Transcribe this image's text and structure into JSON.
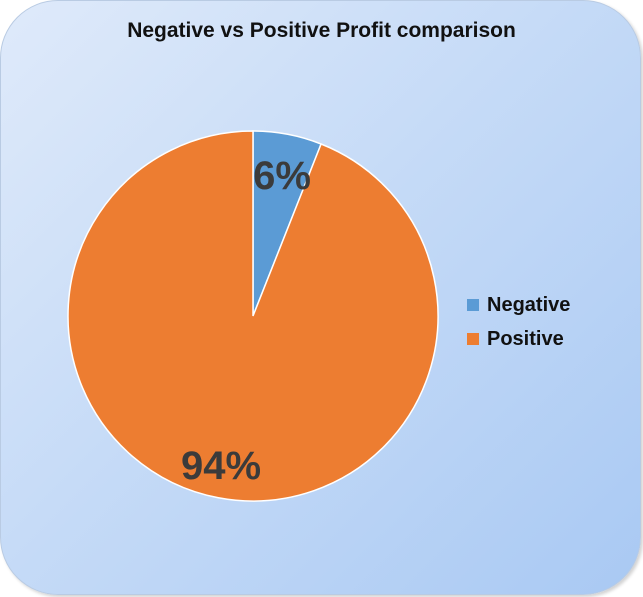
{
  "chart_data": {
    "type": "pie",
    "title": "Negative vs Positive Profit comparison",
    "categories": [
      "Negative",
      "Positive"
    ],
    "values": [
      6,
      94
    ],
    "labels": [
      "6%",
      "94%"
    ],
    "colors": [
      "#5b9bd5",
      "#ed7d31"
    ],
    "legend_position": "right"
  }
}
